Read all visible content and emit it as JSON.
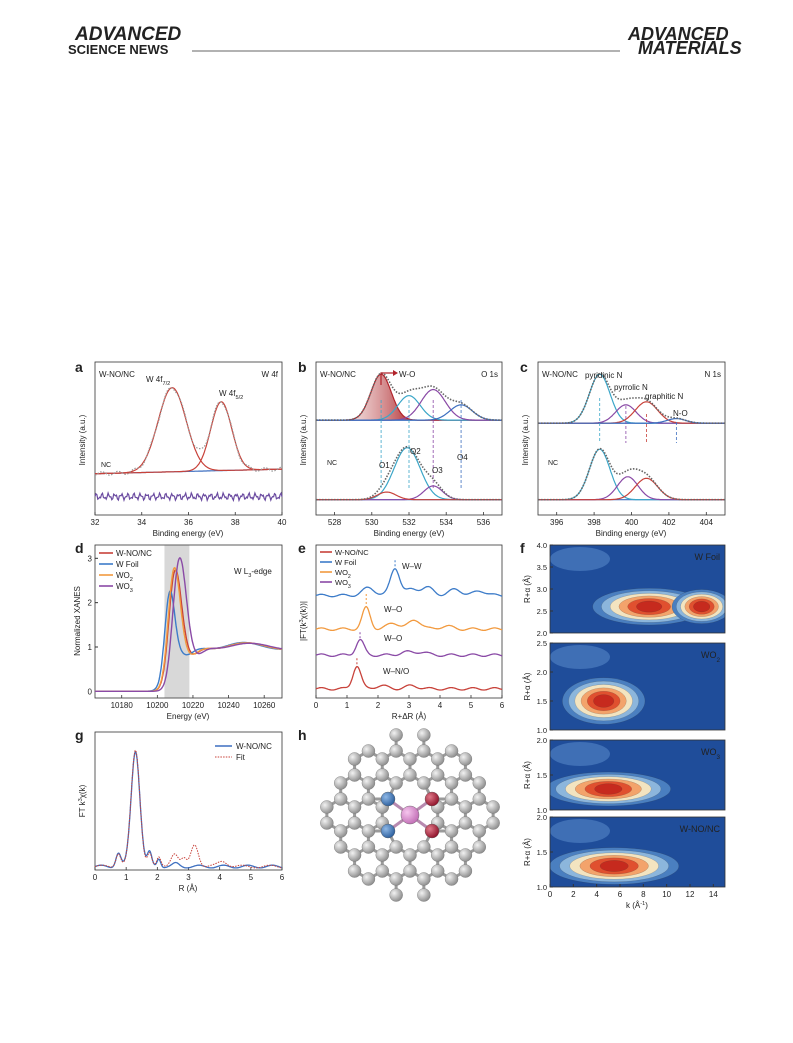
{
  "header": {
    "left": [
      "ADVANCED",
      "SCIENCE NEWS"
    ],
    "right": [
      "ADVANCED",
      "MATERIALS"
    ]
  },
  "figure": {
    "a": {
      "letter": "a",
      "sample": "W-NO/NC",
      "edge": "W 4f",
      "ref": "NC",
      "peaks": [
        [
          "W 4f",
          "7/2"
        ],
        [
          "W 4f",
          "5/2"
        ]
      ],
      "ylabel": "Intensity (a.u.)",
      "xlabel": "Binding energy (eV)",
      "xlim": [
        32,
        40
      ],
      "xticks": [
        "32",
        "34",
        "36",
        "38",
        "40"
      ]
    },
    "b": {
      "letter": "b",
      "sample": "W-NO/NC",
      "edge": "O 1s",
      "ref": "NC",
      "bond": "W-O",
      "peaks": [
        "O1",
        "O2",
        "O3",
        "O4"
      ],
      "ylabel": "Intensity (a.u.)",
      "xlabel": "Binding energy (eV)",
      "xlim": [
        527,
        537
      ],
      "xticks": [
        "528",
        "530",
        "532",
        "534",
        "536"
      ]
    },
    "c": {
      "letter": "c",
      "sample": "W-NO/NC",
      "edge": "N 1s",
      "ref": "NC",
      "peaks": [
        "pyridinic N",
        "pyrrolic N",
        "graphitic N",
        "N-O"
      ],
      "ylabel": "Intensity (a.u.)",
      "xlabel": "Binding energy (eV)",
      "xlim": [
        395,
        405
      ],
      "xticks": [
        "396",
        "398",
        "400",
        "402",
        "404"
      ]
    },
    "d": {
      "letter": "d",
      "edge": [
        "W L",
        "3",
        "-edge"
      ],
      "legend": [
        [
          "W-NO/NC"
        ],
        [
          "W Foil"
        ],
        [
          "WO",
          "2"
        ],
        [
          "WO",
          "3"
        ]
      ],
      "colors": [
        "#c8423a",
        "#3d7cc9",
        "#f29a3f",
        "#8a4aa6"
      ],
      "ylabel": "Normalized XANES",
      "xlabel": "Energy (eV)",
      "xlim": [
        10165,
        10270
      ],
      "xticks": [
        "10180",
        "10200",
        "10220",
        "10240",
        "10260"
      ],
      "ylim": [
        -0.15,
        3.3
      ],
      "yticks": [
        "0",
        "1",
        "2",
        "3"
      ]
    },
    "e": {
      "letter": "e",
      "legend": [
        [
          "W-NO/NC"
        ],
        [
          "W Foil"
        ],
        [
          "WO",
          "2"
        ],
        [
          "WO",
          "3"
        ]
      ],
      "paths": [
        "W–W",
        "W–O",
        "W–O",
        "W–N/O"
      ],
      "ylabel": [
        "|FT(k",
        "3",
        "χ(k))|"
      ],
      "xlabel": "R+ΔR (Å)",
      "xlim": [
        0,
        6
      ],
      "xticks": [
        "0",
        "1",
        "2",
        "3",
        "4",
        "5",
        "6"
      ]
    },
    "f": {
      "letter": "f",
      "xlabel": [
        "k (Å",
        "-1",
        ")"
      ],
      "ylabel": "R+α (Å)",
      "xlim": [
        0,
        15
      ],
      "xticks": [
        "0",
        "2",
        "4",
        "6",
        "8",
        "10",
        "12",
        "14"
      ],
      "maps": [
        {
          "name": [
            "W Foil"
          ],
          "ylim": [
            2,
            4
          ],
          "yticks": [
            "2.0",
            "2.5",
            "3.0",
            "3.5",
            "4.0"
          ]
        },
        {
          "name": [
            "WO",
            "2"
          ],
          "ylim": [
            1,
            2.5
          ],
          "yticks": [
            "1.0",
            "1.5",
            "2.0",
            "2.5"
          ]
        },
        {
          "name": [
            "WO",
            "3"
          ],
          "ylim": [
            1,
            2
          ],
          "yticks": [
            "1.0",
            "1.5",
            "2.0"
          ]
        },
        {
          "name": [
            "W-NO/NC"
          ],
          "ylim": [
            1,
            2
          ],
          "yticks": [
            "1.0",
            "1.5",
            "2.0"
          ]
        }
      ]
    },
    "g": {
      "letter": "g",
      "legend": [
        "W-NO/NC",
        "Fit"
      ],
      "ylabel": [
        "FT k",
        "3",
        "χ(k)"
      ],
      "xlabel": "R (Å)",
      "xlim": [
        0,
        6
      ],
      "xticks": [
        "0",
        "1",
        "2",
        "3",
        "4",
        "5",
        "6"
      ]
    },
    "h": {
      "letter": "h"
    }
  }
}
